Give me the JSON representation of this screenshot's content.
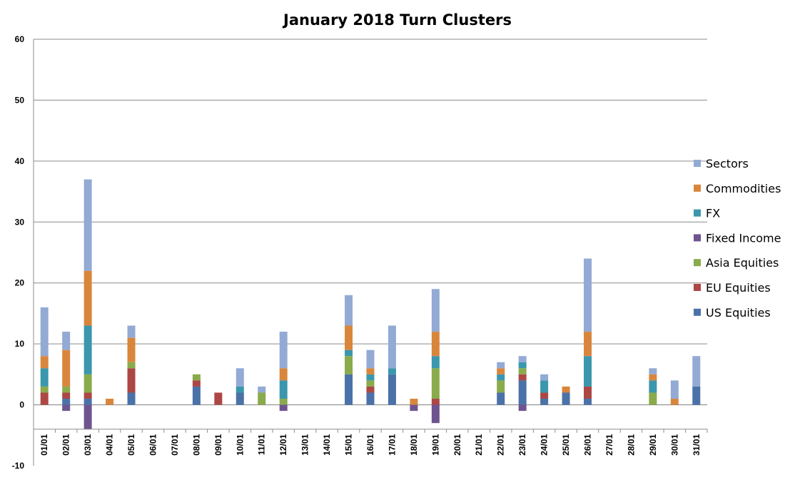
{
  "chart_data": {
    "type": "bar",
    "stacked": true,
    "title": "January 2018 Turn Clusters",
    "xlabel": "",
    "ylabel": "",
    "ylim": [
      -10,
      60
    ],
    "yticks": [
      -10,
      0,
      10,
      20,
      30,
      40,
      50,
      60
    ],
    "grid": true,
    "legend_position": "right",
    "categories": [
      "01/01",
      "02/01",
      "03/01",
      "04/01",
      "05/01",
      "06/01",
      "07/01",
      "08/01",
      "09/01",
      "10/01",
      "11/01",
      "12/01",
      "13/01",
      "14/01",
      "15/01",
      "16/01",
      "17/01",
      "18/01",
      "19/01",
      "20/01",
      "21/01",
      "22/01",
      "23/01",
      "24/01",
      "25/01",
      "26/01",
      "27/01",
      "28/01",
      "29/01",
      "30/01",
      "31/01"
    ],
    "series": [
      {
        "name": "US Equities",
        "color": "#4a72a8",
        "values": [
          0,
          1,
          1,
          0,
          2,
          0,
          0,
          3,
          0,
          2,
          0,
          0,
          0,
          0,
          5,
          2,
          5,
          0,
          0,
          0,
          0,
          2,
          4,
          1,
          2,
          1,
          0,
          0,
          0,
          0,
          3
        ]
      },
      {
        "name": "EU Equities",
        "color": "#ac4745",
        "values": [
          2,
          1,
          1,
          0,
          4,
          0,
          0,
          1,
          2,
          0,
          0,
          0,
          0,
          0,
          0,
          1,
          0,
          0,
          1,
          0,
          0,
          0,
          1,
          1,
          0,
          2,
          0,
          0,
          0,
          0,
          0
        ]
      },
      {
        "name": "Asia Equities",
        "color": "#8aab4c",
        "values": [
          1,
          1,
          3,
          0,
          1,
          0,
          0,
          1,
          0,
          0,
          2,
          1,
          0,
          0,
          3,
          1,
          0,
          0,
          5,
          0,
          0,
          2,
          1,
          0,
          0,
          0,
          0,
          0,
          2,
          0,
          0
        ]
      },
      {
        "name": "Fixed Income",
        "color": "#6e558f",
        "values": [
          0,
          -1,
          -4,
          0,
          0,
          0,
          0,
          0,
          0,
          0,
          0,
          -1,
          0,
          0,
          0,
          0,
          0,
          -1,
          -3,
          0,
          0,
          0,
          -1,
          0,
          0,
          0,
          0,
          0,
          0,
          0,
          0
        ]
      },
      {
        "name": "FX",
        "color": "#3b97ad",
        "values": [
          3,
          0,
          8,
          0,
          0,
          0,
          0,
          0,
          0,
          1,
          0,
          3,
          0,
          0,
          1,
          1,
          1,
          0,
          2,
          0,
          0,
          1,
          1,
          2,
          0,
          5,
          0,
          0,
          2,
          0,
          0
        ]
      },
      {
        "name": "Commodities",
        "color": "#d9863c",
        "values": [
          2,
          6,
          9,
          1,
          4,
          0,
          0,
          0,
          0,
          0,
          0,
          2,
          0,
          0,
          4,
          1,
          0,
          1,
          4,
          0,
          0,
          1,
          0,
          0,
          1,
          4,
          0,
          0,
          1,
          1,
          0
        ]
      },
      {
        "name": "Sectors",
        "color": "#93aad4",
        "values": [
          8,
          3,
          15,
          0,
          2,
          0,
          0,
          0,
          0,
          3,
          1,
          6,
          0,
          0,
          5,
          3,
          7,
          0,
          7,
          0,
          0,
          1,
          1,
          1,
          0,
          12,
          0,
          0,
          1,
          3,
          5
        ]
      }
    ]
  }
}
